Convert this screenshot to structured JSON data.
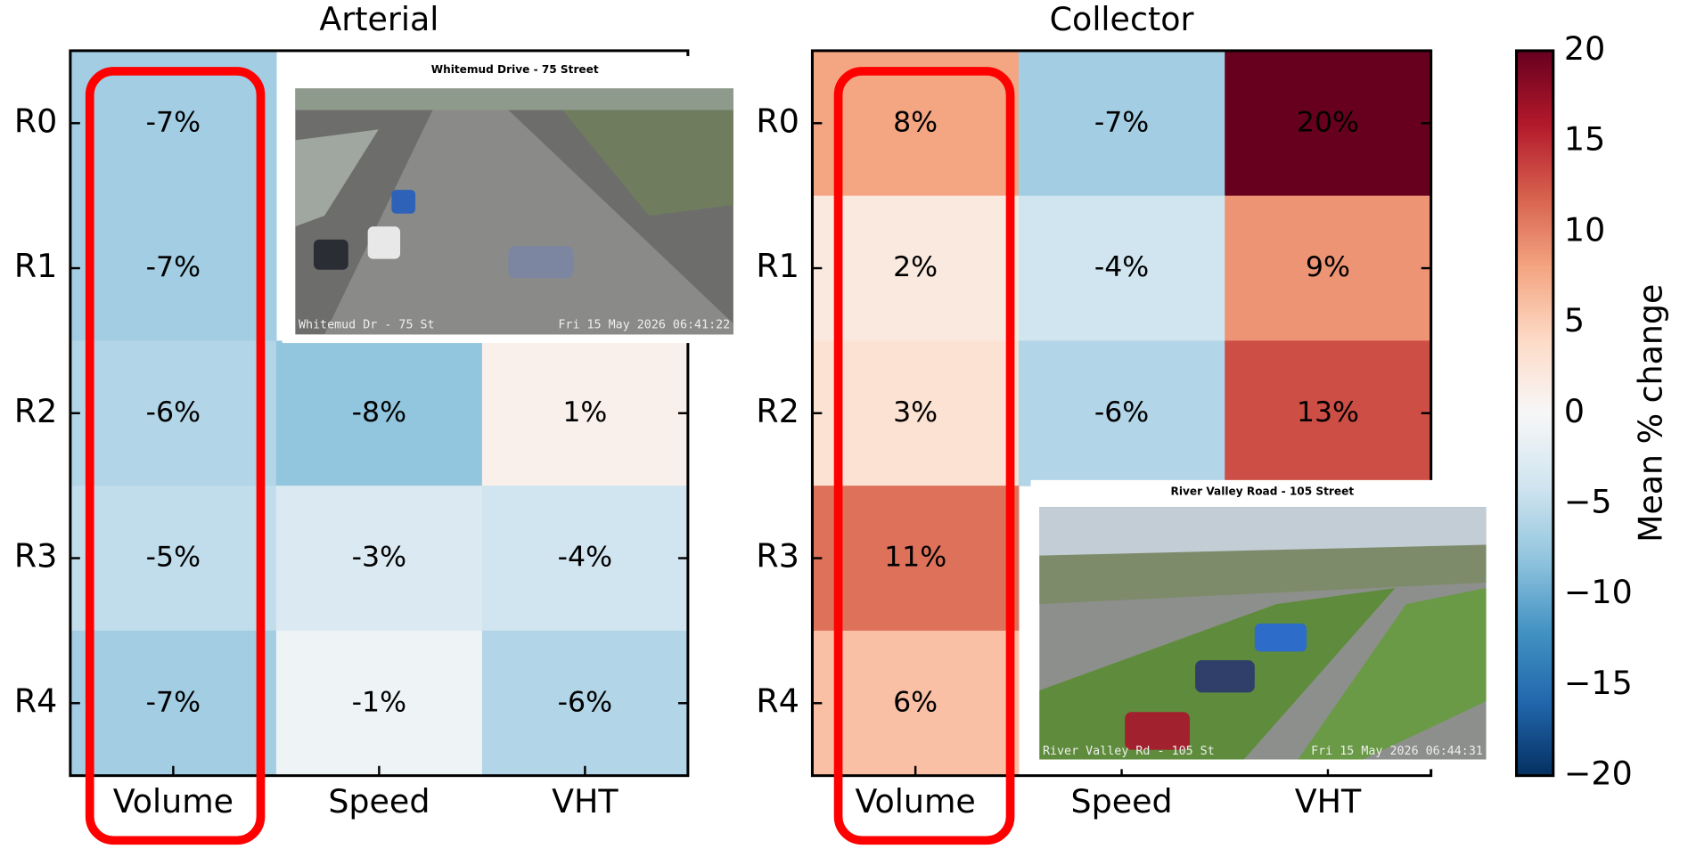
{
  "chart_data": [
    {
      "type": "heatmap",
      "title": "Arterial",
      "categories": [
        "Volume",
        "Speed",
        "VHT"
      ],
      "rows": [
        "R0",
        "R1",
        "R2",
        "R3",
        "R4"
      ],
      "values": [
        [
          -7,
          null,
          null
        ],
        [
          -7,
          null,
          null
        ],
        [
          -6,
          -8,
          1
        ],
        [
          -5,
          -3,
          -4
        ],
        [
          -7,
          -1,
          -6
        ]
      ],
      "value_labels": [
        [
          "-7%",
          null,
          null
        ],
        [
          "-7%",
          null,
          null
        ],
        [
          "-6%",
          "-8%",
          "1%"
        ],
        [
          "-5%",
          "-3%",
          "-4%"
        ],
        [
          "-7%",
          "-1%",
          "-6%"
        ]
      ],
      "colormap": "RdBu_r",
      "clim": [
        -20,
        20
      ]
    },
    {
      "type": "heatmap",
      "title": "Collector",
      "categories": [
        "Volume",
        "Speed",
        "VHT"
      ],
      "rows": [
        "R0",
        "R1",
        "R2",
        "R3",
        "R4"
      ],
      "values": [
        [
          8,
          -7,
          20
        ],
        [
          2,
          -4,
          9
        ],
        [
          3,
          -6,
          13
        ],
        [
          11,
          null,
          null
        ],
        [
          6,
          null,
          null
        ]
      ],
      "value_labels": [
        [
          "8%",
          "-7%",
          "20%"
        ],
        [
          "2%",
          "-4%",
          "9%"
        ],
        [
          "3%",
          "-6%",
          "13%"
        ],
        [
          "11%",
          null,
          null
        ],
        [
          "6%",
          null,
          null
        ]
      ],
      "colormap": "RdBu_r",
      "clim": [
        -20,
        20
      ]
    }
  ],
  "colorbar": {
    "label": "Mean % change",
    "lim": [
      -20,
      20
    ],
    "ticks": [
      {
        "value": -20,
        "label": "−20"
      },
      {
        "value": -15,
        "label": "−15"
      },
      {
        "value": -10,
        "label": "−10"
      },
      {
        "value": -5,
        "label": "−5"
      },
      0,
      5,
      10,
      15,
      20
    ]
  },
  "insets": [
    {
      "title": "Whitemud Drive - 75 Street",
      "overlay_left": "Whitemud Dr - 75 St",
      "overlay_right": "Fri 15 May 2026 06:41:22"
    },
    {
      "title": "River Valley Road - 105 Street",
      "overlay_left": "River Valley Rd - 105 St",
      "overlay_right": "Fri 15 May 2026 06:44:31"
    }
  ]
}
